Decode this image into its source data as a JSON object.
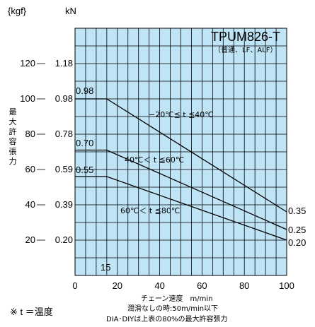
{
  "chart_data": {
    "type": "line",
    "title": "TPUM826-T",
    "subtitle": "（普通、LF、ALF）",
    "xlabel": "チェーン速度　m/min",
    "x_note_1": "潤滑なしの時:50m/min以下",
    "x_note_2": "DIA･DIYは上表の80%の最大許容張力",
    "footnote": "※ t ＝温度",
    "ylabel": "最大許容張力",
    "y_unit_kgf": "{kgf}",
    "y_unit_kn": "kN",
    "xlim": [
      0,
      100
    ],
    "ylim": [
      0,
      140
    ],
    "x_ticks": [
      0,
      20,
      40,
      60,
      80,
      100
    ],
    "x_tick_labels": [
      "0",
      "20",
      "40",
      "60",
      "80",
      "100"
    ],
    "y_ticks_kgf": [
      20,
      40,
      60,
      80,
      100,
      120
    ],
    "y_tick_labels_kgf": [
      "20",
      "40",
      "60",
      "80",
      "100",
      "120"
    ],
    "y_tick_labels_kn": [
      "0.20",
      "0.39",
      "0.59",
      "0.78",
      "0.98",
      "1.18"
    ],
    "marker_x": 15,
    "marker_label": "15",
    "grid": true,
    "series": [
      {
        "name": "−20℃≦ t ≦40℃",
        "x": [
          0,
          15,
          100
        ],
        "y": [
          100,
          100,
          36
        ],
        "start_label": "0.98",
        "end_label": "0.35"
      },
      {
        "name": "40℃＜ t ≦60℃",
        "x": [
          0,
          15,
          100
        ],
        "y": [
          71,
          71,
          26
        ],
        "start_label": "0.70",
        "end_label": "0.25"
      },
      {
        "name": "60℃＜ t ≦80℃",
        "x": [
          0,
          15,
          100
        ],
        "y": [
          56,
          56,
          20
        ],
        "start_label": "0.55",
        "end_label": "0.20"
      }
    ],
    "colors": {
      "plot_bg": "#bfe4f6",
      "line": "#000000"
    }
  }
}
